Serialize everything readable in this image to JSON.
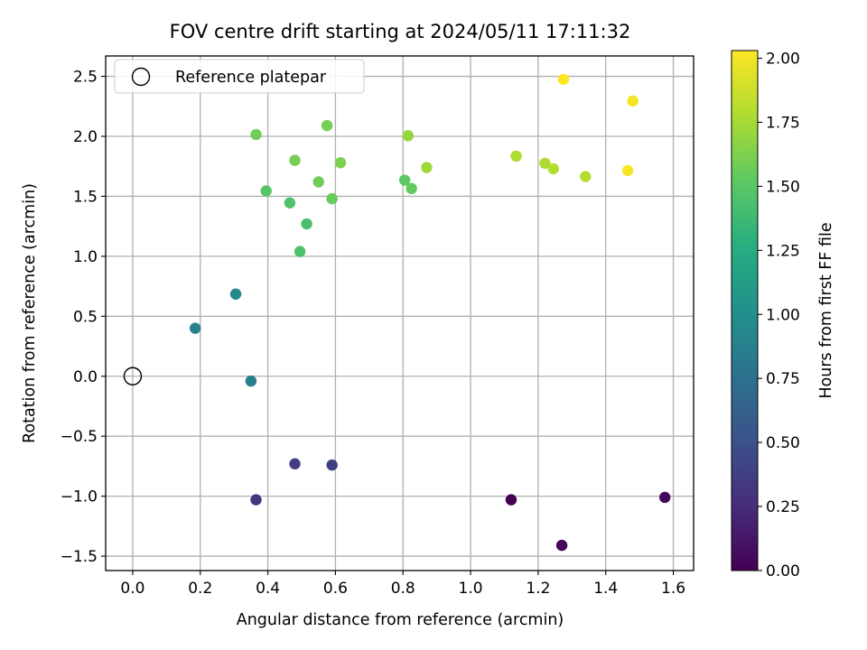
{
  "chart_data": {
    "type": "scatter",
    "title": "FOV centre drift starting at 2024/05/11 17:11:32",
    "xlabel": "Angular distance from reference (arcmin)",
    "ylabel": "Rotation from reference (arcmin)",
    "xlim": [
      -0.08,
      1.66
    ],
    "ylim": [
      -1.62,
      2.67
    ],
    "x_ticks": [
      0.0,
      0.2,
      0.4,
      0.6,
      0.8,
      1.0,
      1.2,
      1.4,
      1.6
    ],
    "x_tick_labels": [
      "0.0",
      "0.2",
      "0.4",
      "0.6",
      "0.8",
      "1.0",
      "1.2",
      "1.4",
      "1.6"
    ],
    "y_ticks": [
      -1.5,
      -1.0,
      -0.5,
      0.0,
      0.5,
      1.0,
      1.5,
      2.0,
      2.5
    ],
    "y_tick_labels": [
      "−1.5",
      "−1.0",
      "−0.5",
      "0.0",
      "0.5",
      "1.0",
      "1.5",
      "2.0",
      "2.5"
    ],
    "grid": true,
    "colormap": "viridis",
    "colorbar": {
      "label": "Hours from first FF file",
      "range": [
        0.0,
        2.03
      ],
      "ticks": [
        0.0,
        0.25,
        0.5,
        0.75,
        1.0,
        1.25,
        1.5,
        1.75,
        2.0
      ],
      "tick_labels": [
        "0.00",
        "0.25",
        "0.50",
        "0.75",
        "1.00",
        "1.25",
        "1.50",
        "1.75",
        "2.00"
      ]
    },
    "reference_point": {
      "x": 0.0,
      "y": 0.0,
      "marker": "open-circle",
      "color": "#000000"
    },
    "legend": {
      "position": "top-left",
      "entries": [
        "Reference platepar"
      ]
    },
    "points": [
      {
        "x": 1.12,
        "y": -1.03,
        "hours": 0.0
      },
      {
        "x": 1.27,
        "y": -1.41,
        "hours": 0.02
      },
      {
        "x": 1.575,
        "y": -1.01,
        "hours": 0.04
      },
      {
        "x": 0.365,
        "y": -1.03,
        "hours": 0.3
      },
      {
        "x": 0.48,
        "y": -0.73,
        "hours": 0.36
      },
      {
        "x": 0.59,
        "y": -0.74,
        "hours": 0.38
      },
      {
        "x": 0.35,
        "y": -0.04,
        "hours": 0.88
      },
      {
        "x": 0.185,
        "y": 0.4,
        "hours": 0.9
      },
      {
        "x": 0.305,
        "y": 0.685,
        "hours": 0.94
      },
      {
        "x": 0.495,
        "y": 1.04,
        "hours": 1.45
      },
      {
        "x": 0.515,
        "y": 1.27,
        "hours": 1.42
      },
      {
        "x": 0.465,
        "y": 1.445,
        "hours": 1.46
      },
      {
        "x": 0.395,
        "y": 1.545,
        "hours": 1.48
      },
      {
        "x": 0.59,
        "y": 1.48,
        "hours": 1.55
      },
      {
        "x": 0.55,
        "y": 1.62,
        "hours": 1.57
      },
      {
        "x": 0.805,
        "y": 1.635,
        "hours": 1.52
      },
      {
        "x": 0.825,
        "y": 1.565,
        "hours": 1.54
      },
      {
        "x": 0.365,
        "y": 2.015,
        "hours": 1.58
      },
      {
        "x": 0.48,
        "y": 1.8,
        "hours": 1.6
      },
      {
        "x": 0.575,
        "y": 2.09,
        "hours": 1.6
      },
      {
        "x": 0.615,
        "y": 1.78,
        "hours": 1.62
      },
      {
        "x": 0.815,
        "y": 2.005,
        "hours": 1.7
      },
      {
        "x": 0.87,
        "y": 1.74,
        "hours": 1.73
      },
      {
        "x": 1.135,
        "y": 1.835,
        "hours": 1.77
      },
      {
        "x": 1.22,
        "y": 1.775,
        "hours": 1.78
      },
      {
        "x": 1.245,
        "y": 1.73,
        "hours": 1.79
      },
      {
        "x": 1.34,
        "y": 1.665,
        "hours": 1.8
      },
      {
        "x": 1.275,
        "y": 2.475,
        "hours": 2.03
      },
      {
        "x": 1.48,
        "y": 2.295,
        "hours": 2.0
      },
      {
        "x": 1.465,
        "y": 1.715,
        "hours": 2.01
      }
    ]
  }
}
